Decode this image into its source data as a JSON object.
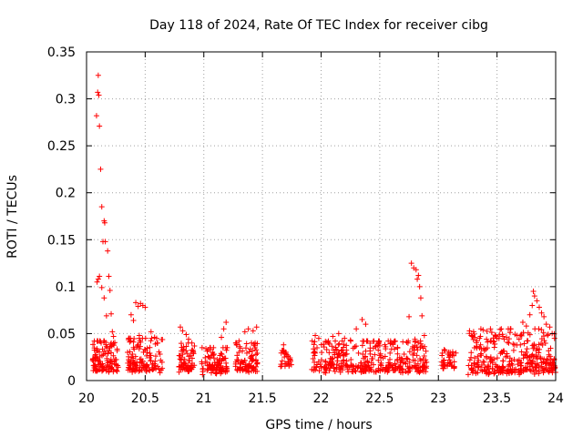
{
  "chart_data": {
    "type": "scatter",
    "title": "Day 118 of 2024, Rate Of TEC Index for receiver cibg",
    "xlabel": "GPS time / hours",
    "ylabel": "ROTI / TECUs",
    "xlim": [
      20,
      24
    ],
    "ylim": [
      0,
      0.35
    ],
    "x_ticks": [
      20,
      20.5,
      21,
      21.5,
      22,
      22.5,
      23,
      23.5,
      24
    ],
    "x_tick_labels": [
      "20",
      "20.5",
      "21",
      "21.5",
      "22",
      "22.5",
      "23",
      "23.5",
      "24"
    ],
    "y_ticks": [
      0,
      0.05,
      0.1,
      0.15,
      0.2,
      0.25,
      0.3,
      0.35
    ],
    "y_tick_labels": [
      "0",
      "0.05",
      "0.1",
      "0.15",
      "0.2",
      "0.25",
      "0.3",
      "0.35"
    ],
    "grid": true,
    "marker": "+",
    "marker_color": "#ff0000",
    "series": [
      {
        "name": "ROTI",
        "points": [
          [
            20.085,
            0.282
          ],
          [
            20.095,
            0.307
          ],
          [
            20.1,
            0.325
          ],
          [
            20.105,
            0.304
          ],
          [
            20.11,
            0.271
          ],
          [
            20.12,
            0.225
          ],
          [
            20.13,
            0.185
          ],
          [
            20.14,
            0.148
          ],
          [
            20.15,
            0.17
          ],
          [
            20.155,
            0.168
          ],
          [
            20.16,
            0.148
          ],
          [
            20.18,
            0.138
          ],
          [
            20.09,
            0.105
          ],
          [
            20.1,
            0.108
          ],
          [
            20.11,
            0.111
          ],
          [
            20.13,
            0.099
          ],
          [
            20.15,
            0.088
          ],
          [
            20.17,
            0.069
          ],
          [
            20.19,
            0.111
          ],
          [
            20.2,
            0.096
          ],
          [
            20.21,
            0.071
          ],
          [
            20.22,
            0.052
          ],
          [
            20.23,
            0.047
          ],
          [
            20.38,
            0.07
          ],
          [
            20.4,
            0.064
          ],
          [
            20.42,
            0.083
          ],
          [
            20.44,
            0.079
          ],
          [
            20.46,
            0.082
          ],
          [
            20.48,
            0.08
          ],
          [
            20.5,
            0.078
          ],
          [
            20.45,
            0.048
          ],
          [
            20.55,
            0.052
          ],
          [
            20.58,
            0.046
          ],
          [
            20.8,
            0.057
          ],
          [
            20.82,
            0.053
          ],
          [
            20.85,
            0.049
          ],
          [
            20.87,
            0.044
          ],
          [
            21.15,
            0.046
          ],
          [
            21.17,
            0.055
          ],
          [
            21.19,
            0.062
          ],
          [
            21.35,
            0.052
          ],
          [
            21.38,
            0.055
          ],
          [
            21.42,
            0.053
          ],
          [
            21.45,
            0.057
          ],
          [
            21.3,
            0.042
          ],
          [
            21.68,
            0.038
          ],
          [
            21.7,
            0.03
          ],
          [
            21.95,
            0.048
          ],
          [
            21.98,
            0.045
          ],
          [
            22.05,
            0.041
          ],
          [
            22.1,
            0.047
          ],
          [
            22.15,
            0.05
          ],
          [
            22.2,
            0.045
          ],
          [
            22.25,
            0.043
          ],
          [
            22.3,
            0.055
          ],
          [
            22.35,
            0.065
          ],
          [
            22.38,
            0.06
          ],
          [
            22.45,
            0.042
          ],
          [
            22.5,
            0.037
          ],
          [
            22.55,
            0.036
          ],
          [
            22.75,
            0.068
          ],
          [
            22.77,
            0.125
          ],
          [
            22.79,
            0.12
          ],
          [
            22.81,
            0.118
          ],
          [
            22.82,
            0.108
          ],
          [
            22.83,
            0.112
          ],
          [
            22.84,
            0.1
          ],
          [
            22.85,
            0.088
          ],
          [
            22.86,
            0.069
          ],
          [
            22.88,
            0.048
          ],
          [
            22.8,
            0.044
          ],
          [
            22.85,
            0.039
          ],
          [
            23.05,
            0.033
          ],
          [
            23.1,
            0.03
          ],
          [
            23.28,
            0.048
          ],
          [
            23.3,
            0.052
          ],
          [
            23.35,
            0.045
          ],
          [
            23.45,
            0.042
          ],
          [
            23.5,
            0.045
          ],
          [
            23.55,
            0.047
          ],
          [
            23.6,
            0.04
          ],
          [
            23.65,
            0.038
          ],
          [
            23.7,
            0.048
          ],
          [
            23.72,
            0.062
          ],
          [
            23.75,
            0.058
          ],
          [
            23.78,
            0.07
          ],
          [
            23.8,
            0.08
          ],
          [
            23.82,
            0.09
          ],
          [
            23.84,
            0.085
          ],
          [
            23.86,
            0.078
          ],
          [
            23.88,
            0.072
          ],
          [
            23.9,
            0.068
          ],
          [
            23.92,
            0.06
          ],
          [
            23.95,
            0.057
          ],
          [
            23.97,
            0.05
          ],
          [
            23.99,
            0.045
          ],
          [
            23.81,
            0.095
          ]
        ],
        "dense_clusters": [
          {
            "x_range": [
              20.05,
              20.27
            ],
            "y_range": [
              0.008,
              0.042
            ],
            "approx_points": 120
          },
          {
            "x_range": [
              20.35,
              20.65
            ],
            "y_range": [
              0.008,
              0.045
            ],
            "approx_points": 130
          },
          {
            "x_range": [
              20.78,
              20.92
            ],
            "y_range": [
              0.008,
              0.04
            ],
            "approx_points": 70
          },
          {
            "x_range": [
              20.98,
              21.2
            ],
            "y_range": [
              0.006,
              0.035
            ],
            "approx_points": 100
          },
          {
            "x_range": [
              21.27,
              21.46
            ],
            "y_range": [
              0.008,
              0.04
            ],
            "approx_points": 90
          },
          {
            "x_range": [
              21.65,
              21.75
            ],
            "y_range": [
              0.012,
              0.032
            ],
            "approx_points": 30
          },
          {
            "x_range": [
              21.92,
              22.9
            ],
            "y_range": [
              0.008,
              0.042
            ],
            "approx_points": 360
          },
          {
            "x_range": [
              23.03,
              23.15
            ],
            "y_range": [
              0.012,
              0.032
            ],
            "approx_points": 40
          },
          {
            "x_range": [
              23.25,
              24.0
            ],
            "y_range": [
              0.006,
              0.055
            ],
            "approx_points": 330
          }
        ]
      }
    ]
  }
}
